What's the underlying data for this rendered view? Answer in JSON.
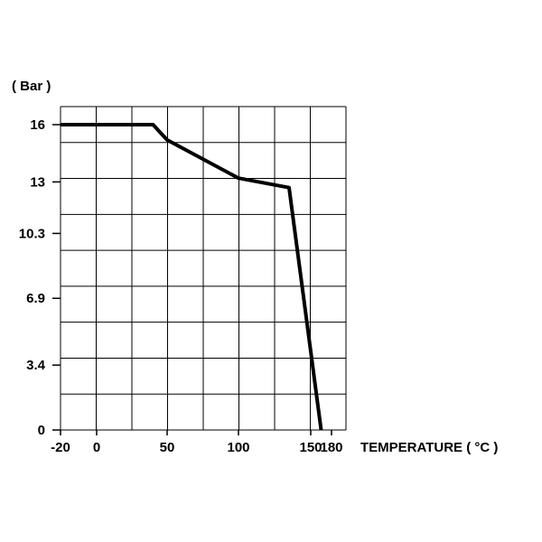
{
  "chart_data": {
    "type": "line",
    "title": "",
    "ylabel": "( Bar )",
    "xlabel": "TEMPERATURE ( °C )",
    "xlim": [
      -20,
      180
    ],
    "ylim": [
      0,
      16
    ],
    "grid": true,
    "y_ticks": [
      {
        "value": 16,
        "label": "16"
      },
      {
        "value": 13,
        "label": "13"
      },
      {
        "value": 10.3,
        "label": "10.3"
      },
      {
        "value": 6.9,
        "label": "6.9"
      },
      {
        "value": 3.4,
        "label": "3.4"
      },
      {
        "value": 0,
        "label": "0"
      }
    ],
    "x_ticks": [
      {
        "value": -20,
        "label": "-20"
      },
      {
        "value": 0,
        "label": "0"
      },
      {
        "value": 50,
        "label": "50"
      },
      {
        "value": 100,
        "label": "100"
      },
      {
        "value": 150,
        "label": "150"
      },
      {
        "value": 180,
        "label": "180"
      }
    ],
    "series": [
      {
        "color": "#000000",
        "x": [
          -20,
          40,
          50,
          100,
          135,
          165
        ],
        "y": [
          16,
          16,
          15.2,
          13.2,
          12.7,
          0
        ]
      }
    ]
  }
}
